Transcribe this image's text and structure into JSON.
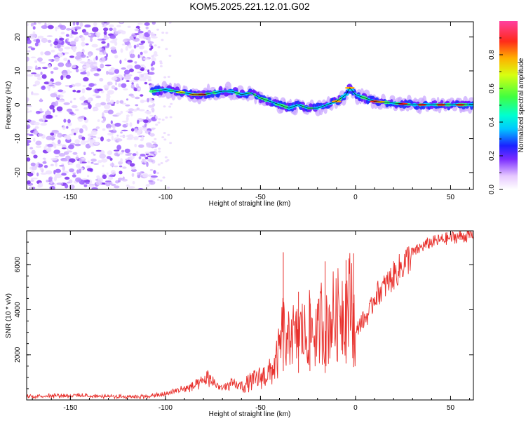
{
  "title": "KOM5.2025.221.12.01.G02",
  "chart_data": [
    {
      "type": "heatmap",
      "name": "spectrogram",
      "xlabel": "Height of straight line (km)",
      "ylabel": "Frequency (Hz)",
      "xlim": [
        -173,
        62
      ],
      "ylim": [
        -25,
        24.5
      ],
      "xticks": [
        -150,
        -100,
        -50,
        0,
        50
      ],
      "yticks": [
        -20,
        -10,
        0,
        10,
        20
      ],
      "colorbar": {
        "label": "Normalized spectral amplitude",
        "range": [
          0,
          1
        ],
        "ticks": [
          0.0,
          0.2,
          0.4,
          0.6,
          0.8
        ]
      },
      "noise_region_x": [
        -173,
        -108
      ],
      "track": {
        "x": [
          -107,
          -100,
          -95,
          -90,
          -85,
          -80,
          -75,
          -70,
          -65,
          -60,
          -55,
          -50,
          -45,
          -40,
          -35,
          -30,
          -25,
          -20,
          -15,
          -10,
          -5,
          -3,
          0,
          5,
          10,
          20,
          30,
          40,
          50,
          62
        ],
        "y": [
          4,
          4.5,
          4,
          3.5,
          3,
          3,
          3.5,
          4,
          4,
          3,
          3.5,
          2,
          1,
          0,
          -1,
          0,
          -1,
          -1,
          0,
          1,
          3,
          5,
          3,
          2,
          1,
          0.5,
          0,
          0,
          0,
          0
        ]
      }
    },
    {
      "type": "line",
      "name": "snr",
      "xlabel": "Height of straight line (km)",
      "ylabel": "SNR (10 * v/v)",
      "xlim": [
        -173,
        62
      ],
      "ylim": [
        0,
        7500
      ],
      "xticks": [
        -150,
        -100,
        -50,
        0,
        50
      ],
      "yticks": [
        2000,
        4000,
        6000
      ],
      "color": "#e8302c",
      "series": [
        {
          "name": "SNR",
          "x": [
            -173,
            -160,
            -150,
            -140,
            -130,
            -120,
            -110,
            -100,
            -95,
            -90,
            -85,
            -80,
            -78,
            -75,
            -70,
            -65,
            -60,
            -55,
            -50,
            -45,
            -42,
            -40,
            -38,
            -36,
            -34,
            -32,
            -30,
            -28,
            -26,
            -24,
            -22,
            -20,
            -18,
            -16,
            -14,
            -12,
            -10,
            -8,
            -6,
            -4,
            -2,
            0,
            2,
            5,
            8,
            10,
            15,
            20,
            25,
            30,
            35,
            40,
            45,
            50,
            55,
            62
          ],
          "y": [
            150,
            200,
            200,
            180,
            150,
            150,
            150,
            250,
            400,
            500,
            600,
            800,
            1000,
            800,
            500,
            700,
            600,
            800,
            1000,
            1200,
            1600,
            2200,
            3200,
            2000,
            3500,
            2500,
            3000,
            3000,
            2800,
            3200,
            3000,
            2800,
            3600,
            3000,
            3300,
            3800,
            3500,
            4300,
            3900,
            4200,
            4500,
            2800,
            3400,
            3600,
            4000,
            4600,
            5000,
            5500,
            6000,
            6500,
            6800,
            7000,
            7100,
            7200,
            7250,
            7300
          ]
        }
      ],
      "spikes": [
        {
          "x": -38,
          "y": 6550
        },
        {
          "x": -30,
          "y": 4800
        },
        {
          "x": -24,
          "y": 4500
        },
        {
          "x": -16,
          "y": 6150
        },
        {
          "x": -5,
          "y": 6200
        },
        {
          "x": -1,
          "y": 6500
        }
      ]
    }
  ]
}
